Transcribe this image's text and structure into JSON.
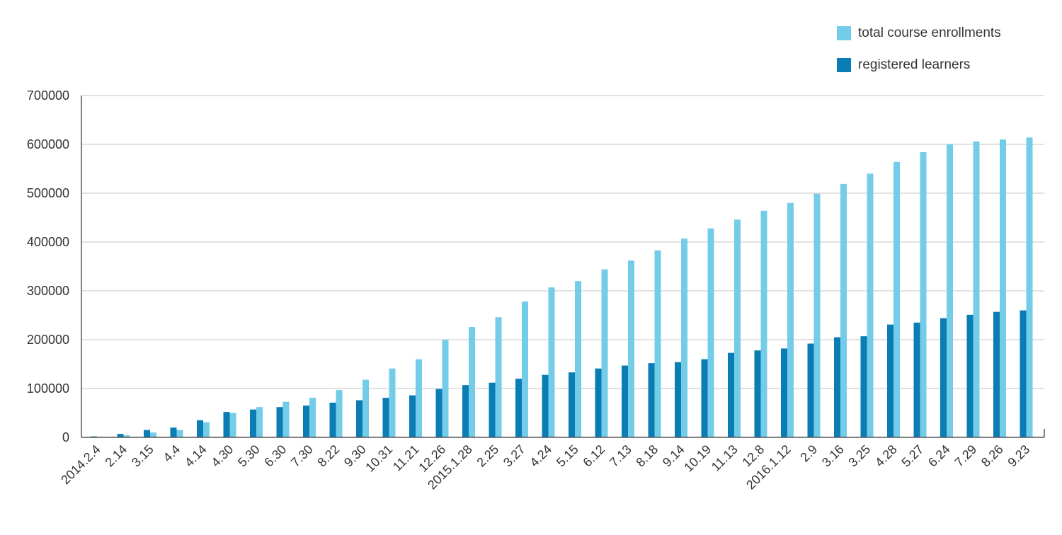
{
  "chart_data": {
    "type": "bar",
    "title": "",
    "xlabel": "",
    "ylabel": "",
    "ylim": [
      0,
      700000
    ],
    "yticks": [
      0,
      100000,
      200000,
      300000,
      400000,
      500000,
      600000,
      700000
    ],
    "grid": true,
    "legend_position": "top-right",
    "categories": [
      "2014.2.4",
      "2.14",
      "3.15",
      "4.4",
      "4.14",
      "4.30",
      "5.30",
      "6.30",
      "7.30",
      "8.22",
      "9.30",
      "10.31",
      "11.21",
      "12.26",
      "2015.1.28",
      "2.25",
      "3.27",
      "4.24",
      "5.15",
      "6.12",
      "7.13",
      "8.18",
      "9.14",
      "10.19",
      "11.13",
      "12.8",
      "2016.1.12",
      "2.9",
      "3.16",
      "3.25",
      "4.28",
      "5.27",
      "6.24",
      "7.29",
      "8.26",
      "9.23"
    ],
    "series": [
      {
        "name": "registered learners",
        "color": "#0a7db5",
        "values": [
          2000,
          7000,
          15000,
          20000,
          35000,
          52000,
          57000,
          62000,
          65000,
          71000,
          76000,
          81000,
          86000,
          99000,
          107000,
          112000,
          120000,
          128000,
          133000,
          141000,
          147000,
          152000,
          154000,
          160000,
          173000,
          178000,
          182000,
          192000,
          205000,
          207000,
          231000,
          235000,
          244000,
          251000,
          257000,
          260000
        ]
      },
      {
        "name": "total course enrollments",
        "color": "#73cce8",
        "values": [
          1000,
          4000,
          10000,
          15000,
          31000,
          50000,
          62000,
          73000,
          81000,
          97000,
          118000,
          141000,
          160000,
          200000,
          226000,
          246000,
          278000,
          307000,
          320000,
          344000,
          362000,
          383000,
          407000,
          428000,
          446000,
          464000,
          480000,
          499000,
          519000,
          540000,
          564000,
          584000,
          600000,
          606000,
          610000,
          614000
        ]
      }
    ]
  }
}
